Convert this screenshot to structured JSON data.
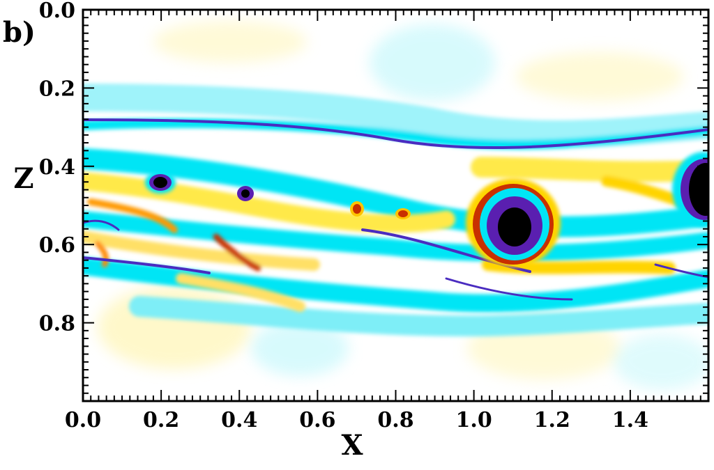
{
  "chart_data": {
    "type": "heatmap",
    "panel_label": "b)",
    "xlabel": "X",
    "ylabel": "Z",
    "xlim": [
      0.0,
      1.6
    ],
    "ylim": [
      0.0,
      1.0
    ],
    "y_inverted": true,
    "x_ticks": [
      "0.0",
      "0.2",
      "0.4",
      "0.6",
      "0.8",
      "1.0",
      "1.2",
      "1.4"
    ],
    "x_tick_values": [
      0.0,
      0.2,
      0.4,
      0.6,
      0.8,
      1.0,
      1.2,
      1.4
    ],
    "y_ticks": [
      "0.0",
      "0.2",
      "0.4",
      "0.6",
      "0.8"
    ],
    "y_tick_values": [
      0.0,
      0.2,
      0.4,
      0.6,
      0.8
    ],
    "colormap": [
      "#000000",
      "#5a1fb0",
      "#2d7fe0",
      "#00e5f5",
      "#ffffff",
      "#fff26a",
      "#ffc400",
      "#c83000"
    ],
    "vortex_cores": [
      {
        "x": 0.2,
        "z": 0.44,
        "sign": "negative"
      },
      {
        "x": 0.42,
        "z": 0.47,
        "sign": "negative"
      },
      {
        "x": 0.7,
        "z": 0.51,
        "sign": "positive"
      },
      {
        "x": 0.82,
        "z": 0.52,
        "sign": "positive"
      },
      {
        "x": 1.1,
        "z": 0.55,
        "sign": "negative"
      },
      {
        "x": 1.58,
        "z": 0.46,
        "sign": "negative"
      }
    ]
  }
}
